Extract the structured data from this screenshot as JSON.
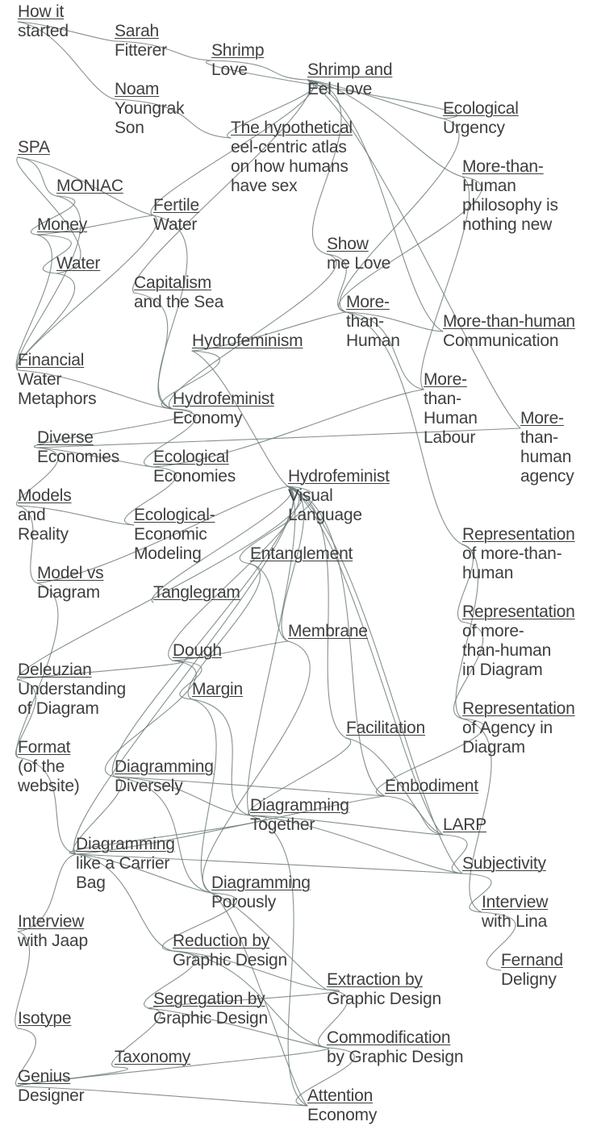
{
  "diagram": {
    "line_color": "#6e7d7d",
    "text_color": "#3f3f3f",
    "background": "#ffffff",
    "nodes": [
      {
        "id": "how-it-started",
        "lines": [
          "How it",
          "started"
        ]
      },
      {
        "id": "sarah-fitterer",
        "lines": [
          "Sarah",
          "Fitterer"
        ]
      },
      {
        "id": "shrimp-love",
        "lines": [
          "Shrimp",
          "Love"
        ]
      },
      {
        "id": "shrimp-and-eel-love",
        "lines": [
          "Shrimp and",
          "Eel Love"
        ]
      },
      {
        "id": "noam-youngrak-son",
        "lines": [
          "Noam",
          "Youngrak",
          "Son"
        ]
      },
      {
        "id": "ecological-urgency",
        "lines": [
          "Ecological",
          "Urgency"
        ]
      },
      {
        "id": "eel-centric-atlas",
        "lines": [
          "The hypothetical",
          "eel-centric atlas",
          "on how humans",
          "have sex"
        ]
      },
      {
        "id": "spa",
        "lines": [
          "SPA"
        ]
      },
      {
        "id": "mth-philosophy",
        "lines": [
          "More-than-",
          "Human",
          "philosophy is",
          "nothing new"
        ]
      },
      {
        "id": "moniac",
        "lines": [
          "MONIAC"
        ]
      },
      {
        "id": "fertile-water",
        "lines": [
          "Fertile",
          "Water"
        ]
      },
      {
        "id": "money",
        "lines": [
          "Money"
        ]
      },
      {
        "id": "show-me-love",
        "lines": [
          "Show",
          "me Love"
        ]
      },
      {
        "id": "water",
        "lines": [
          "Water"
        ]
      },
      {
        "id": "capitalism-sea",
        "lines": [
          "Capitalism",
          "and the Sea"
        ]
      },
      {
        "id": "more-than-human",
        "lines": [
          "More-",
          "than-",
          "Human"
        ]
      },
      {
        "id": "mth-communication",
        "lines": [
          "More-than-human",
          "Communication"
        ]
      },
      {
        "id": "hydrofeminism",
        "lines": [
          "Hydrofeminism"
        ]
      },
      {
        "id": "financial-water",
        "lines": [
          "Financial",
          "Water",
          "Metaphors"
        ]
      },
      {
        "id": "mth-labour",
        "lines": [
          "More-",
          "than-",
          "Human",
          "Labour"
        ]
      },
      {
        "id": "hydrofeminist-economy",
        "lines": [
          "Hydrofeminist",
          "Economy"
        ]
      },
      {
        "id": "mth-agency",
        "lines": [
          "More-",
          "than-",
          "human",
          "agency"
        ]
      },
      {
        "id": "diverse-economies",
        "lines": [
          "Diverse",
          "Economies"
        ]
      },
      {
        "id": "ecological-economies",
        "lines": [
          "Ecological",
          "Economies"
        ]
      },
      {
        "id": "hydrofeminist-visual",
        "lines": [
          "Hydrofeminist",
          "Visual",
          "Language"
        ]
      },
      {
        "id": "models-reality",
        "lines": [
          "Models",
          "and",
          "Reality"
        ]
      },
      {
        "id": "eco-economic-modeling",
        "lines": [
          "Ecological-",
          "Economic",
          "Modeling"
        ]
      },
      {
        "id": "representation-mth",
        "lines": [
          "Representation",
          "of more-than-",
          "human"
        ]
      },
      {
        "id": "entanglement",
        "lines": [
          "Entanglement"
        ]
      },
      {
        "id": "model-vs-diagram",
        "lines": [
          "Model vs",
          "Diagram"
        ]
      },
      {
        "id": "tanglegram",
        "lines": [
          "Tanglegram"
        ]
      },
      {
        "id": "representation-mth-diagram",
        "lines": [
          "Representation",
          "of more-",
          "than-human",
          "in Diagram"
        ]
      },
      {
        "id": "membrane",
        "lines": [
          "Membrane"
        ]
      },
      {
        "id": "dough",
        "lines": [
          "Dough"
        ]
      },
      {
        "id": "deleuzian",
        "lines": [
          "Deleuzian",
          "Understanding",
          "of Diagram"
        ]
      },
      {
        "id": "margin",
        "lines": [
          "Margin"
        ]
      },
      {
        "id": "representation-agency",
        "lines": [
          "Representation",
          "of Agency in",
          "Diagram"
        ]
      },
      {
        "id": "facilitation",
        "lines": [
          "Facilitation"
        ]
      },
      {
        "id": "format-website",
        "lines": [
          "Format",
          "(of the",
          "website)"
        ]
      },
      {
        "id": "diagramming-diversely",
        "lines": [
          "Diagramming",
          "Diversely"
        ]
      },
      {
        "id": "embodiment",
        "lines": [
          "Embodiment"
        ]
      },
      {
        "id": "diagramming-together",
        "lines": [
          "Diagramming",
          "Together"
        ]
      },
      {
        "id": "larp",
        "lines": [
          "LARP"
        ]
      },
      {
        "id": "diagramming-carrier-bag",
        "lines": [
          "Diagramming",
          "like a Carrier",
          "Bag"
        ]
      },
      {
        "id": "subjectivity",
        "lines": [
          "Subjectivity"
        ]
      },
      {
        "id": "diagramming-porously",
        "lines": [
          "Diagramming",
          "Porously"
        ]
      },
      {
        "id": "interview-lina",
        "lines": [
          "Interview",
          "with Lina"
        ]
      },
      {
        "id": "interview-jaap",
        "lines": [
          "Interview",
          "with Jaap"
        ]
      },
      {
        "id": "reduction-graphic",
        "lines": [
          "Reduction by",
          "Graphic Design"
        ]
      },
      {
        "id": "fernand-deligny",
        "lines": [
          "Fernand",
          "Deligny"
        ]
      },
      {
        "id": "extraction-graphic",
        "lines": [
          "Extraction by",
          "Graphic Design"
        ]
      },
      {
        "id": "segregation-graphic",
        "lines": [
          "Segregation by",
          "Graphic Design"
        ]
      },
      {
        "id": "isotype",
        "lines": [
          "Isotype"
        ]
      },
      {
        "id": "commodification-graphic",
        "lines": [
          "Commodification",
          "by Graphic Design"
        ]
      },
      {
        "id": "taxonomy",
        "lines": [
          "Taxonomy"
        ]
      },
      {
        "id": "genius-designer",
        "lines": [
          "Genius",
          "Designer"
        ]
      },
      {
        "id": "attention-economy",
        "lines": [
          "Attention",
          "Economy"
        ]
      }
    ],
    "edges": [
      [
        "how-it-started",
        "sarah-fitterer"
      ],
      [
        "how-it-started",
        "noam-youngrak-son"
      ],
      [
        "sarah-fitterer",
        "shrimp-love"
      ],
      [
        "shrimp-love",
        "shrimp-and-eel-love"
      ],
      [
        "noam-youngrak-son",
        "eel-centric-atlas"
      ],
      [
        "shrimp-and-eel-love",
        "ecological-urgency"
      ],
      [
        "shrimp-and-eel-love",
        "eel-centric-atlas"
      ],
      [
        "shrimp-and-eel-love",
        "mth-philosophy"
      ],
      [
        "shrimp-and-eel-love",
        "mth-communication"
      ],
      [
        "shrimp-and-eel-love",
        "show-me-love"
      ],
      [
        "shrimp-and-eel-love",
        "capitalism-sea"
      ],
      [
        "shrimp-and-eel-love",
        "fertile-water"
      ],
      [
        "shrimp-and-eel-love",
        "mth-agency"
      ],
      [
        "ecological-urgency",
        "more-than-human"
      ],
      [
        "ecological-urgency",
        "shrimp-love"
      ],
      [
        "spa",
        "moniac"
      ],
      [
        "spa",
        "fertile-water"
      ],
      [
        "moniac",
        "money"
      ],
      [
        "moniac",
        "financial-water"
      ],
      [
        "money",
        "water"
      ],
      [
        "money",
        "fertile-water"
      ],
      [
        "money",
        "financial-water"
      ],
      [
        "water",
        "financial-water"
      ],
      [
        "water",
        "spa"
      ],
      [
        "fertile-water",
        "hydrofeminist-economy"
      ],
      [
        "fertile-water",
        "financial-water"
      ],
      [
        "show-me-love",
        "more-than-human"
      ],
      [
        "show-me-love",
        "hydrofeminist-economy"
      ],
      [
        "capitalism-sea",
        "hydrofeminist-economy"
      ],
      [
        "mth-philosophy",
        "more-than-human"
      ],
      [
        "mth-philosophy",
        "mth-labour"
      ],
      [
        "more-than-human",
        "mth-communication"
      ],
      [
        "more-than-human",
        "mth-labour"
      ],
      [
        "more-than-human",
        "representation-mth"
      ],
      [
        "hydrofeminism",
        "hydrofeminist-economy"
      ],
      [
        "hydrofeminism",
        "hydrofeminist-visual"
      ],
      [
        "hydrofeminism",
        "more-than-human"
      ],
      [
        "financial-water",
        "hydrofeminist-economy"
      ],
      [
        "hydrofeminist-economy",
        "ecological-economies"
      ],
      [
        "hydrofeminist-economy",
        "diverse-economies"
      ],
      [
        "diverse-economies",
        "ecological-economies"
      ],
      [
        "diverse-economies",
        "mth-agency"
      ],
      [
        "diverse-economies",
        "models-reality"
      ],
      [
        "ecological-economies",
        "eco-economic-modeling"
      ],
      [
        "ecological-economies",
        "mth-labour"
      ],
      [
        "models-reality",
        "model-vs-diagram"
      ],
      [
        "models-reality",
        "eco-economic-modeling"
      ],
      [
        "model-vs-diagram",
        "format-website"
      ],
      [
        "model-vs-diagram",
        "hydrofeminist-visual"
      ],
      [
        "hydrofeminist-visual",
        "entanglement"
      ],
      [
        "hydrofeminist-visual",
        "tanglegram"
      ],
      [
        "hydrofeminist-visual",
        "membrane"
      ],
      [
        "hydrofeminist-visual",
        "dough"
      ],
      [
        "hydrofeminist-visual",
        "facilitation"
      ],
      [
        "hydrofeminist-visual",
        "embodiment"
      ],
      [
        "hydrofeminist-visual",
        "diagramming-together"
      ],
      [
        "hydrofeminist-visual",
        "diagramming-carrier-bag"
      ],
      [
        "hydrofeminist-visual",
        "larp"
      ],
      [
        "hydrofeminist-visual",
        "subjectivity"
      ],
      [
        "hydrofeminist-visual",
        "deleuzian"
      ],
      [
        "representation-mth",
        "representation-mth-diagram"
      ],
      [
        "representation-mth",
        "representation-agency"
      ],
      [
        "representation-mth-diagram",
        "representation-agency"
      ],
      [
        "representation-agency",
        "interview-lina"
      ],
      [
        "representation-agency",
        "embodiment"
      ],
      [
        "entanglement",
        "membrane"
      ],
      [
        "entanglement",
        "margin"
      ],
      [
        "dough",
        "deleuzian"
      ],
      [
        "dough",
        "margin"
      ],
      [
        "dough",
        "diagramming-diversely"
      ],
      [
        "dough",
        "membrane"
      ],
      [
        "deleuzian",
        "format-website"
      ],
      [
        "margin",
        "diagramming-porously"
      ],
      [
        "margin",
        "diagramming-together"
      ],
      [
        "membrane",
        "diagramming-porously"
      ],
      [
        "facilitation",
        "diagramming-together"
      ],
      [
        "facilitation",
        "larp"
      ],
      [
        "format-website",
        "diagramming-carrier-bag"
      ],
      [
        "diagramming-diversely",
        "diagramming-together"
      ],
      [
        "diagramming-diversely",
        "diagramming-porously"
      ],
      [
        "diagramming-diversely",
        "diagramming-carrier-bag"
      ],
      [
        "diagramming-diversely",
        "embodiment"
      ],
      [
        "diagramming-together",
        "larp"
      ],
      [
        "diagramming-together",
        "subjectivity"
      ],
      [
        "diagramming-together",
        "diagramming-carrier-bag"
      ],
      [
        "diagramming-carrier-bag",
        "subjectivity"
      ],
      [
        "diagramming-carrier-bag",
        "diagramming-porously"
      ],
      [
        "diagramming-carrier-bag",
        "reduction-graphic"
      ],
      [
        "diagramming-carrier-bag",
        "embodiment"
      ],
      [
        "diagramming-porously",
        "reduction-graphic"
      ],
      [
        "diagramming-porously",
        "extraction-graphic"
      ],
      [
        "embodiment",
        "larp"
      ],
      [
        "larp",
        "subjectivity"
      ],
      [
        "subjectivity",
        "interview-lina"
      ],
      [
        "interview-lina",
        "fernand-deligny"
      ],
      [
        "interview-jaap",
        "isotype"
      ],
      [
        "interview-jaap",
        "diagramming-carrier-bag"
      ],
      [
        "reduction-graphic",
        "extraction-graphic"
      ],
      [
        "reduction-graphic",
        "segregation-graphic"
      ],
      [
        "reduction-graphic",
        "commodification-graphic"
      ],
      [
        "segregation-graphic",
        "taxonomy"
      ],
      [
        "segregation-graphic",
        "commodification-graphic"
      ],
      [
        "extraction-graphic",
        "commodification-graphic"
      ],
      [
        "extraction-graphic",
        "segregation-graphic"
      ],
      [
        "commodification-graphic",
        "attention-economy"
      ],
      [
        "commodification-graphic",
        "genius-designer"
      ],
      [
        "isotype",
        "genius-designer"
      ],
      [
        "taxonomy",
        "genius-designer"
      ],
      [
        "genius-designer",
        "attention-economy"
      ],
      [
        "diagramming-together",
        "attention-economy"
      ],
      [
        "diagramming-porously",
        "attention-economy"
      ],
      [
        "hydrofeminist-visual",
        "diagramming-diversely"
      ]
    ]
  }
}
